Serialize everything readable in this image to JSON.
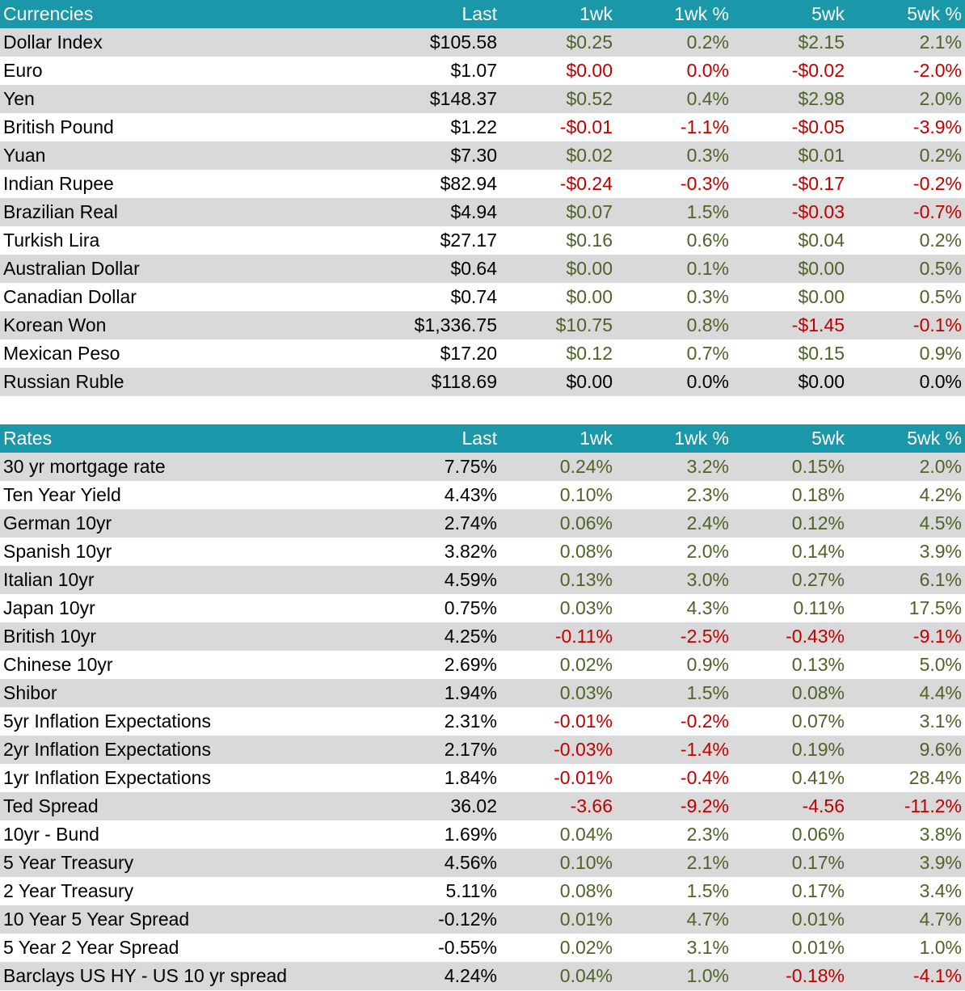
{
  "currencies": {
    "header": [
      "Currencies",
      "Last",
      "1wk",
      "1wk %",
      "5wk",
      "5wk %"
    ],
    "rows": [
      {
        "name": "Dollar Index",
        "last": "$105.58",
        "w1": "$0.25",
        "w1p": "0.2%",
        "w5": "$2.15",
        "w5p": "2.1%",
        "w1c": "pos",
        "w5c": "pos"
      },
      {
        "name": "Euro",
        "last": "$1.07",
        "w1": "$0.00",
        "w1p": "0.0%",
        "w5": "-$0.02",
        "w5p": "-2.0%",
        "w1c": "neg",
        "w5c": "neg"
      },
      {
        "name": "Yen",
        "last": "$148.37",
        "w1": "$0.52",
        "w1p": "0.4%",
        "w5": "$2.98",
        "w5p": "2.0%",
        "w1c": "pos",
        "w5c": "pos"
      },
      {
        "name": "British Pound",
        "last": "$1.22",
        "w1": "-$0.01",
        "w1p": "-1.1%",
        "w5": "-$0.05",
        "w5p": "-3.9%",
        "w1c": "neg",
        "w5c": "neg"
      },
      {
        "name": "Yuan",
        "last": "$7.30",
        "w1": "$0.02",
        "w1p": "0.3%",
        "w5": "$0.01",
        "w5p": "0.2%",
        "w1c": "pos",
        "w5c": "pos"
      },
      {
        "name": "Indian Rupee",
        "last": "$82.94",
        "w1": "-$0.24",
        "w1p": "-0.3%",
        "w5": "-$0.17",
        "w5p": "-0.2%",
        "w1c": "neg",
        "w5c": "neg"
      },
      {
        "name": "Brazilian Real",
        "last": "$4.94",
        "w1": "$0.07",
        "w1p": "1.5%",
        "w5": "-$0.03",
        "w5p": "-0.7%",
        "w1c": "pos",
        "w5c": "neg"
      },
      {
        "name": "Turkish Lira",
        "last": "$27.17",
        "w1": "$0.16",
        "w1p": "0.6%",
        "w5": "$0.04",
        "w5p": "0.2%",
        "w1c": "pos",
        "w5c": "pos"
      },
      {
        "name": "Australian Dollar",
        "last": "$0.64",
        "w1": "$0.00",
        "w1p": "0.1%",
        "w5": "$0.00",
        "w5p": "0.5%",
        "w1c": "pos",
        "w5c": "pos"
      },
      {
        "name": "Canadian Dollar",
        "last": "$0.74",
        "w1": "$0.00",
        "w1p": "0.3%",
        "w5": "$0.00",
        "w5p": "0.5%",
        "w1c": "pos",
        "w5c": "pos"
      },
      {
        "name": "Korean Won",
        "last": "$1,336.75",
        "w1": "$10.75",
        "w1p": "0.8%",
        "w5": "-$1.45",
        "w5p": "-0.1%",
        "w1c": "pos",
        "w5c": "neg"
      },
      {
        "name": "Mexican Peso",
        "last": "$17.20",
        "w1": "$0.12",
        "w1p": "0.7%",
        "w5": "$0.15",
        "w5p": "0.9%",
        "w1c": "pos",
        "w5c": "pos"
      },
      {
        "name": "Russian Ruble",
        "last": "$118.69",
        "w1": "$0.00",
        "w1p": "0.0%",
        "w5": "$0.00",
        "w5p": "0.0%",
        "w1c": "neu",
        "w5c": "neu"
      }
    ]
  },
  "rates": {
    "header": [
      "Rates",
      "Last",
      "1wk",
      "1wk %",
      "5wk",
      "5wk %"
    ],
    "rows": [
      {
        "name": "30 yr mortgage rate",
        "last": "7.75%",
        "w1": "0.24%",
        "w1p": "3.2%",
        "w5": "0.15%",
        "w5p": "2.0%",
        "w1c": "pos",
        "w5c": "pos"
      },
      {
        "name": "Ten Year Yield",
        "last": "4.43%",
        "w1": "0.10%",
        "w1p": "2.3%",
        "w5": "0.18%",
        "w5p": "4.2%",
        "w1c": "pos",
        "w5c": "pos"
      },
      {
        "name": "German 10yr",
        "last": "2.74%",
        "w1": "0.06%",
        "w1p": "2.4%",
        "w5": "0.12%",
        "w5p": "4.5%",
        "w1c": "pos",
        "w5c": "pos"
      },
      {
        "name": "Spanish 10yr",
        "last": "3.82%",
        "w1": "0.08%",
        "w1p": "2.0%",
        "w5": "0.14%",
        "w5p": "3.9%",
        "w1c": "pos",
        "w5c": "pos"
      },
      {
        "name": "Italian 10yr",
        "last": "4.59%",
        "w1": "0.13%",
        "w1p": "3.0%",
        "w5": "0.27%",
        "w5p": "6.1%",
        "w1c": "pos",
        "w5c": "pos"
      },
      {
        "name": "Japan 10yr",
        "last": "0.75%",
        "w1": "0.03%",
        "w1p": "4.3%",
        "w5": "0.11%",
        "w5p": "17.5%",
        "w1c": "pos",
        "w5c": "pos"
      },
      {
        "name": "British 10yr",
        "last": "4.25%",
        "w1": "-0.11%",
        "w1p": "-2.5%",
        "w5": "-0.43%",
        "w5p": "-9.1%",
        "w1c": "neg",
        "w5c": "neg"
      },
      {
        "name": "Chinese 10yr",
        "last": "2.69%",
        "w1": "0.02%",
        "w1p": "0.9%",
        "w5": "0.13%",
        "w5p": "5.0%",
        "w1c": "pos",
        "w5c": "pos"
      },
      {
        "name": "Shibor",
        "last": "1.94%",
        "w1": "0.03%",
        "w1p": "1.5%",
        "w5": "0.08%",
        "w5p": "4.4%",
        "w1c": "pos",
        "w5c": "pos"
      },
      {
        "name": "5yr Inflation Expectations",
        "last": "2.31%",
        "w1": "-0.01%",
        "w1p": "-0.2%",
        "w5": "0.07%",
        "w5p": "3.1%",
        "w1c": "neg",
        "w5c": "pos"
      },
      {
        "name": "2yr Inflation Expectations",
        "last": "2.17%",
        "w1": "-0.03%",
        "w1p": "-1.4%",
        "w5": "0.19%",
        "w5p": "9.6%",
        "w1c": "neg",
        "w5c": "pos"
      },
      {
        "name": "1yr Inflation Expectations",
        "last": "1.84%",
        "w1": "-0.01%",
        "w1p": "-0.4%",
        "w5": "0.41%",
        "w5p": "28.4%",
        "w1c": "neg",
        "w5c": "pos"
      },
      {
        "name": "Ted Spread",
        "last": "36.02",
        "w1": "-3.66",
        "w1p": "-9.2%",
        "w5": "-4.56",
        "w5p": "-11.2%",
        "w1c": "neg",
        "w5c": "neg"
      },
      {
        "name": "10yr - Bund",
        "last": "1.69%",
        "w1": "0.04%",
        "w1p": "2.3%",
        "w5": "0.06%",
        "w5p": "3.8%",
        "w1c": "pos",
        "w5c": "pos"
      },
      {
        "name": "5 Year Treasury",
        "last": "4.56%",
        "w1": "0.10%",
        "w1p": "2.1%",
        "w5": "0.17%",
        "w5p": "3.9%",
        "w1c": "pos",
        "w5c": "pos"
      },
      {
        "name": "2 Year Treasury",
        "last": "5.11%",
        "w1": "0.08%",
        "w1p": "1.5%",
        "w5": "0.17%",
        "w5p": "3.4%",
        "w1c": "pos",
        "w5c": "pos"
      },
      {
        "name": "10 Year 5 Year Spread",
        "last": "-0.12%",
        "w1": "0.01%",
        "w1p": "4.7%",
        "w5": "0.01%",
        "w5p": "4.7%",
        "w1c": "pos",
        "w5c": "pos"
      },
      {
        "name": "5 Year 2 Year Spread",
        "last": "-0.55%",
        "w1": "0.02%",
        "w1p": "3.1%",
        "w5": "0.01%",
        "w5p": "1.0%",
        "w1c": "pos",
        "w5c": "pos"
      },
      {
        "name": "Barclays US HY - US 10 yr spread",
        "last": "4.24%",
        "w1": "0.04%",
        "w1p": "1.0%",
        "w5": "-0.18%",
        "w5p": "-4.1%",
        "w1c": "pos",
        "w5c": "neg"
      }
    ]
  },
  "colors": {
    "header_bg": "#1a97a8",
    "shade_bg": "#d9d9d9",
    "positive": "#4f6228",
    "negative": "#c00000"
  }
}
